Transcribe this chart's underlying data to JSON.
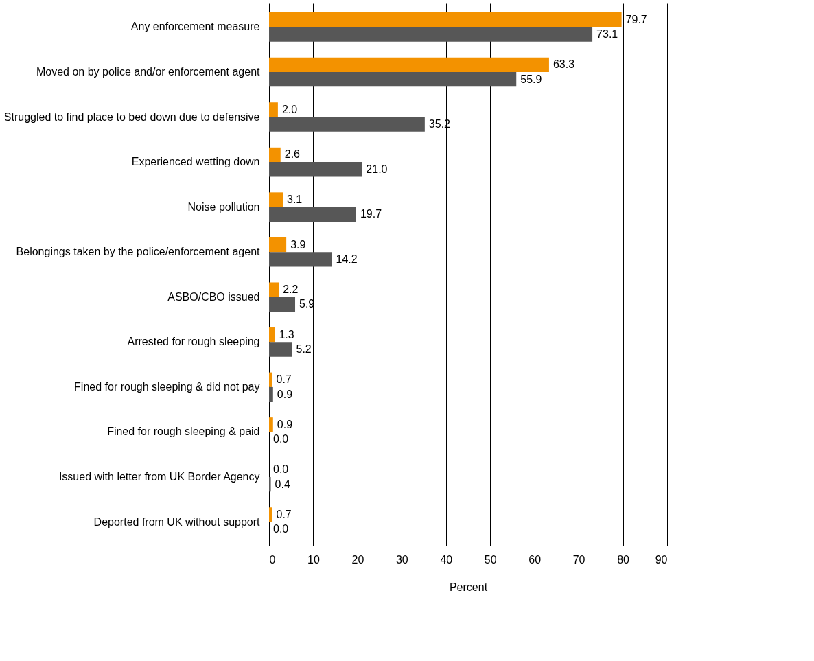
{
  "chart_data": {
    "type": "bar",
    "orientation": "horizontal",
    "xlabel": "Percent",
    "categories": [
      "Any enforcement measure",
      "Moved on by police and/or enforcement agent",
      "Struggled to find place to bed down due to defensive",
      "Experienced wetting down",
      "Noise pollution",
      "Belongings taken by the police/enforcement agent",
      "ASBO/CBO issued",
      "Arrested for rough sleeping",
      "Fined for rough sleeping & did not pay",
      "Fined for rough sleeping & paid",
      "Issued with letter from UK Border Agency",
      "Deported from UK without support"
    ],
    "series": [
      {
        "color": "#f39200",
        "values": [
          79.7,
          63.3,
          2.0,
          2.6,
          3.1,
          3.9,
          2.2,
          1.3,
          0.7,
          0.9,
          0.0,
          0.7
        ],
        "value_labels": [
          "79.7",
          "63.3",
          "2.0",
          "2.6",
          "3.1",
          "3.9",
          "2.2",
          "1.3",
          "0.7",
          "0.9",
          "0.0",
          "0.7"
        ]
      },
      {
        "color": "#575757",
        "values": [
          73.1,
          55.9,
          35.2,
          21.0,
          19.7,
          14.2,
          5.9,
          5.2,
          0.9,
          0.0,
          0.4,
          0.0
        ],
        "value_labels": [
          "73.1",
          "55.9",
          "35.2",
          "21.0",
          "19.7",
          "14.2",
          "5.9",
          "5.2",
          "0.9",
          "0.0",
          "0.4",
          "0.0"
        ]
      }
    ],
    "xlim": [
      0,
      90
    ],
    "xticks": [
      0,
      10,
      20,
      30,
      40,
      50,
      60,
      70,
      80,
      90
    ],
    "grid": "x",
    "legend": false
  }
}
